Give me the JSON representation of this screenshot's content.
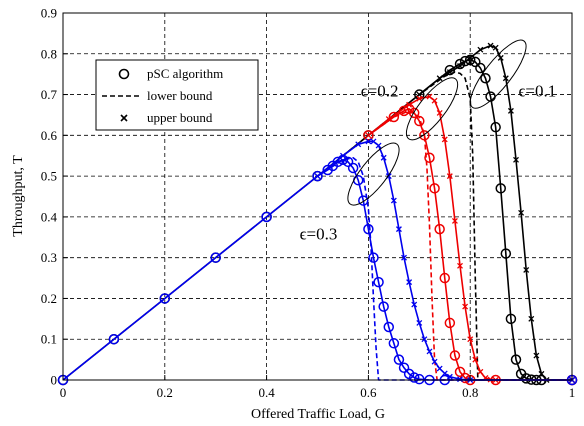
{
  "chart_data": {
    "type": "line",
    "xlabel": "Offered Traffic Load, G",
    "ylabel": "Throughput, T",
    "xlim": [
      0,
      1
    ],
    "ylim": [
      0,
      0.9
    ],
    "xticks": [
      "0",
      "0.2",
      "0.4",
      "0.6",
      "0.8",
      "1"
    ],
    "yticks": [
      "0",
      "0.1",
      "0.2",
      "0.3",
      "0.4",
      "0.5",
      "0.6",
      "0.7",
      "0.8",
      "0.9"
    ],
    "grid": true,
    "legend_position": "top-left",
    "legend": [
      {
        "label": "pSC algorithm",
        "marker": "circle",
        "line": "none"
      },
      {
        "label": "lower bound",
        "marker": "none",
        "line": "dashed"
      },
      {
        "label": "upper bound",
        "marker": "x",
        "line": "none"
      }
    ],
    "annotations": [
      {
        "text": "ϵ=0.1",
        "x": 0.895,
        "y": 0.695
      },
      {
        "text": "ϵ=0.2",
        "x": 0.585,
        "y": 0.695
      },
      {
        "text": "ϵ=0.3",
        "x": 0.465,
        "y": 0.345
      }
    ],
    "series": [
      {
        "epsilon": "0.1",
        "color": "#000000",
        "role": "pSC algorithm",
        "style": "solid",
        "marker": "circle",
        "x": [
          0,
          0.1,
          0.2,
          0.3,
          0.4,
          0.5,
          0.6,
          0.7,
          0.76,
          0.78,
          0.79,
          0.8,
          0.81,
          0.82,
          0.83,
          0.84,
          0.85,
          0.86,
          0.87,
          0.88,
          0.89,
          0.9,
          0.91,
          0.92,
          0.93,
          0.94,
          1.0
        ],
        "y": [
          0,
          0.1,
          0.2,
          0.3,
          0.4,
          0.5,
          0.6,
          0.7,
          0.76,
          0.775,
          0.782,
          0.785,
          0.78,
          0.765,
          0.74,
          0.695,
          0.62,
          0.47,
          0.31,
          0.15,
          0.05,
          0.015,
          0.004,
          0.001,
          0,
          0,
          0
        ]
      },
      {
        "epsilon": "0.1",
        "color": "#000000",
        "role": "lower bound",
        "style": "dashed",
        "marker": "none",
        "x": [
          0.5,
          0.6,
          0.7,
          0.75,
          0.77,
          0.78,
          0.79,
          0.8,
          0.805,
          0.81,
          0.815,
          1.0
        ],
        "y": [
          0.5,
          0.6,
          0.7,
          0.745,
          0.755,
          0.752,
          0.74,
          0.69,
          0.55,
          0.25,
          0,
          0
        ]
      },
      {
        "epsilon": "0.1",
        "color": "#000000",
        "role": "upper bound",
        "style": "solid",
        "marker": "x",
        "x": [
          0.7,
          0.74,
          0.76,
          0.78,
          0.8,
          0.82,
          0.84,
          0.85,
          0.86,
          0.87,
          0.88,
          0.89,
          0.9,
          0.91,
          0.92,
          0.93,
          0.94,
          0.95,
          1.0
        ],
        "y": [
          0.7,
          0.74,
          0.755,
          0.77,
          0.79,
          0.81,
          0.82,
          0.815,
          0.79,
          0.74,
          0.66,
          0.54,
          0.41,
          0.27,
          0.15,
          0.06,
          0.015,
          0,
          0
        ]
      },
      {
        "epsilon": "0.2",
        "color": "#ee0000",
        "role": "pSC algorithm",
        "style": "solid",
        "marker": "circle",
        "x": [
          0.6,
          0.65,
          0.67,
          0.68,
          0.69,
          0.7,
          0.71,
          0.72,
          0.73,
          0.74,
          0.75,
          0.76,
          0.77,
          0.78,
          0.79,
          0.8,
          0.85,
          1.0
        ],
        "y": [
          0.6,
          0.645,
          0.66,
          0.665,
          0.655,
          0.635,
          0.6,
          0.545,
          0.47,
          0.37,
          0.25,
          0.14,
          0.06,
          0.02,
          0.005,
          0,
          0,
          0
        ]
      },
      {
        "epsilon": "0.2",
        "color": "#ee0000",
        "role": "lower bound",
        "style": "dashed",
        "marker": "none",
        "x": [
          0.6,
          0.65,
          0.68,
          0.7,
          0.71,
          0.715,
          0.72,
          0.725,
          0.73,
          0.735,
          1.0
        ],
        "y": [
          0.6,
          0.645,
          0.66,
          0.645,
          0.6,
          0.52,
          0.38,
          0.2,
          0.05,
          0,
          0
        ]
      },
      {
        "epsilon": "0.2",
        "color": "#ee0000",
        "role": "upper bound",
        "style": "solid",
        "marker": "x",
        "x": [
          0.6,
          0.64,
          0.68,
          0.7,
          0.72,
          0.73,
          0.74,
          0.75,
          0.76,
          0.77,
          0.78,
          0.79,
          0.8,
          0.81,
          0.82,
          0.83,
          0.84,
          0.85,
          1.0
        ],
        "y": [
          0.6,
          0.64,
          0.675,
          0.69,
          0.695,
          0.685,
          0.655,
          0.59,
          0.5,
          0.39,
          0.28,
          0.18,
          0.1,
          0.05,
          0.02,
          0.005,
          0.001,
          0,
          0
        ]
      },
      {
        "epsilon": "0.3",
        "color": "#0000ee",
        "role": "pSC algorithm",
        "style": "solid",
        "marker": "circle",
        "x": [
          0,
          0.1,
          0.2,
          0.3,
          0.4,
          0.5,
          0.52,
          0.53,
          0.54,
          0.55,
          0.56,
          0.57,
          0.58,
          0.59,
          0.6,
          0.61,
          0.62,
          0.63,
          0.64,
          0.65,
          0.66,
          0.67,
          0.68,
          0.69,
          0.7,
          0.72,
          0.75,
          1.0
        ],
        "y": [
          0,
          0.1,
          0.2,
          0.3,
          0.4,
          0.5,
          0.515,
          0.525,
          0.535,
          0.54,
          0.535,
          0.52,
          0.49,
          0.44,
          0.37,
          0.3,
          0.24,
          0.18,
          0.13,
          0.09,
          0.05,
          0.03,
          0.015,
          0.006,
          0.002,
          0,
          0,
          0
        ]
      },
      {
        "epsilon": "0.3",
        "color": "#0000ee",
        "role": "lower bound",
        "style": "dashed",
        "marker": "none",
        "x": [
          0.5,
          0.55,
          0.57,
          0.58,
          0.59,
          0.6,
          0.605,
          0.61,
          0.615,
          0.62,
          1.0
        ],
        "y": [
          0.5,
          0.54,
          0.545,
          0.535,
          0.5,
          0.42,
          0.33,
          0.2,
          0.08,
          0,
          0
        ]
      },
      {
        "epsilon": "0.3",
        "color": "#0000ee",
        "role": "upper bound",
        "style": "solid",
        "marker": "x",
        "x": [
          0.5,
          0.55,
          0.58,
          0.6,
          0.61,
          0.62,
          0.63,
          0.64,
          0.65,
          0.66,
          0.67,
          0.68,
          0.69,
          0.7,
          0.71,
          0.72,
          0.73,
          0.74,
          0.75,
          0.76,
          0.78,
          0.8,
          1.0
        ],
        "y": [
          0.5,
          0.55,
          0.578,
          0.585,
          0.585,
          0.575,
          0.545,
          0.5,
          0.44,
          0.37,
          0.3,
          0.24,
          0.185,
          0.14,
          0.1,
          0.07,
          0.045,
          0.028,
          0.016,
          0.008,
          0.002,
          0,
          0
        ]
      }
    ]
  }
}
